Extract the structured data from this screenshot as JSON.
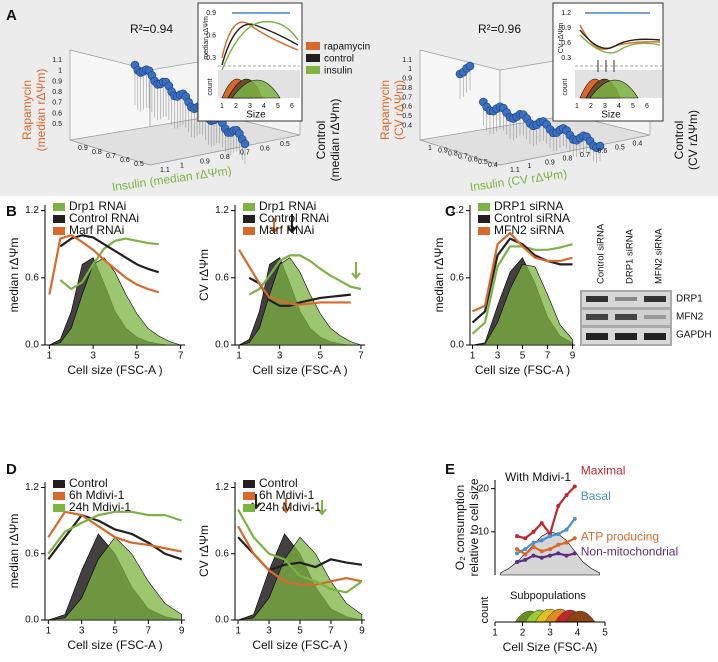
{
  "panels": [
    "A",
    "B",
    "C",
    "D",
    "E"
  ],
  "panel_a": {
    "left": {
      "r2": "R²=0.94",
      "z_label": [
        "Rapamycin",
        "(median rΔΨm)"
      ],
      "x_label": "Insulin (median rΔΨm)",
      "y_label": [
        "Control",
        "(median rΔΨm)"
      ],
      "inset_ylabel": "median rΔΨm",
      "inset_yticks": [
        "0.9",
        "0.6",
        "0.3"
      ],
      "inset_xlabel": "Size",
      "inset_xticks": [
        "1",
        "2",
        "3",
        "4",
        "5",
        "6"
      ],
      "count": "count",
      "x_ticks": [
        "0.9",
        "0.8",
        "0.7",
        "0.6",
        "0.5"
      ],
      "y_ticks": [
        "1.1",
        "1",
        "0.9",
        "0.8",
        "0.7",
        "0.6",
        "0.5"
      ],
      "z_ticks": [
        "1.1",
        "1",
        "0.9",
        "0.8",
        "0.7",
        "0.6",
        "0.5"
      ]
    },
    "right": {
      "r2": "R²=0.96",
      "z_label": [
        "Rapamycin",
        "(CV rΔΨm)"
      ],
      "x_label": "Insulin (CV rΔΨm)",
      "y_label": [
        "Control",
        "(CV rΔΨm)"
      ],
      "inset_ylabel": "CV rΔΨm",
      "inset_yticks": [
        "1.2",
        "0.9",
        "0.6",
        "0.3"
      ],
      "inset_xlabel": "Size",
      "inset_xticks": [
        "1",
        "2",
        "3",
        "4",
        "5",
        "6"
      ],
      "count": "count",
      "x_ticks": [
        "1",
        "0.9",
        "0.8",
        "0.7",
        "0.6",
        "0.5",
        "0.4"
      ],
      "y_ticks": [
        "1.1",
        "1",
        "0.9",
        "0.8",
        "0.7",
        "0.6",
        "0.5",
        "0.4"
      ],
      "z_ticks": [
        "1.1",
        "1",
        "0.9",
        "0.8",
        "0.7",
        "0.6",
        "0.5",
        "0.4"
      ]
    },
    "legend": [
      {
        "name": "rapamycin",
        "color": "#d9692b"
      },
      {
        "name": "control",
        "color": "#231f20"
      },
      {
        "name": "insulin",
        "color": "#7cb342"
      }
    ]
  },
  "blot": {
    "lanes": [
      "Control siRNA",
      "DRP1 siRNA",
      "MFN2 siRNA"
    ],
    "bands": [
      "DRP1",
      "MFN2",
      "GAPDH"
    ]
  },
  "panel_e_sub": {
    "title": "Subpopulations",
    "ylabel": "count"
  },
  "chart_data": [
    {
      "type": "line",
      "ylabel": "median rΔΨm",
      "xlabel": "Cell size (FSC-A )",
      "x": [
        1,
        1.5,
        2,
        2.5,
        3,
        3.5,
        4,
        4.5,
        5,
        5.5,
        6,
        6.5,
        7
      ],
      "xlim": [
        0.8,
        7.2
      ],
      "xticks": [
        1,
        3,
        5,
        7
      ],
      "ylim": [
        0,
        1.25
      ],
      "yticks": [
        {
          "value": 0,
          "label": "0.0"
        },
        0.6,
        1.2
      ],
      "series": [
        {
          "color": "#231f20",
          "fill": true,
          "values": [
            0,
            0.05,
            0.3,
            0.72,
            0.78,
            0.55,
            0.3,
            0.15,
            0.07,
            0.03,
            0.01,
            0,
            0
          ]
        },
        {
          "color": "#7cb342",
          "fill": true,
          "values": [
            0,
            0.02,
            0.15,
            0.45,
            0.72,
            0.78,
            0.65,
            0.45,
            0.28,
            0.15,
            0.08,
            0.03,
            0
          ]
        },
        {
          "name": "Drp1 RNAi",
          "color": "#7cb342",
          "values": [
            null,
            0.58,
            0.5,
            0.56,
            0.72,
            0.86,
            0.93,
            0.95,
            0.93,
            0.91,
            0.9,
            null,
            null
          ]
        },
        {
          "name": "Control RNAi",
          "color": "#231f20",
          "values": [
            null,
            0.88,
            0.95,
            0.98,
            0.96,
            0.9,
            0.84,
            0.78,
            0.72,
            0.68,
            0.65,
            null,
            null
          ]
        },
        {
          "name": "Marf RNAi",
          "color": "#d9692b",
          "values": [
            0.45,
            0.95,
            0.98,
            0.92,
            0.85,
            0.76,
            0.68,
            0.6,
            0.54,
            0.5,
            0.47,
            null,
            null
          ]
        }
      ]
    },
    {
      "type": "line",
      "ylabel": "CV rΔΨm",
      "xlabel": "Cell size (FSC-A )",
      "x": [
        1,
        1.5,
        2,
        2.5,
        3,
        3.5,
        4,
        4.5,
        5,
        5.5,
        6,
        6.5,
        7
      ],
      "xlim": [
        0.8,
        7.2
      ],
      "xticks": [
        1,
        3,
        5,
        7
      ],
      "ylim": [
        0,
        1.25
      ],
      "yticks": [
        {
          "value": 0,
          "label": "0.0"
        },
        0.6,
        1.2
      ],
      "series": [
        {
          "color": "#231f20",
          "fill": true,
          "values": [
            0,
            0.05,
            0.3,
            0.72,
            0.78,
            0.55,
            0.3,
            0.15,
            0.07,
            0.03,
            0.01,
            0,
            0
          ]
        },
        {
          "color": "#7cb342",
          "fill": true,
          "values": [
            0,
            0.02,
            0.15,
            0.45,
            0.72,
            0.78,
            0.65,
            0.45,
            0.28,
            0.15,
            0.08,
            0.03,
            0
          ]
        },
        {
          "name": "Drp1 RNAi",
          "color": "#7cb342",
          "values": [
            null,
            0.45,
            0.5,
            0.62,
            0.75,
            0.8,
            0.8,
            0.75,
            0.68,
            0.62,
            0.57,
            0.52,
            0.5
          ]
        },
        {
          "name": "Control RNAi",
          "color": "#231f20",
          "values": [
            null,
            0.6,
            0.55,
            0.4,
            0.35,
            0.35,
            0.38,
            0.4,
            0.42,
            0.43,
            0.44,
            0.45,
            null
          ]
        },
        {
          "name": "Marf RNAi",
          "color": "#d9692b",
          "values": [
            0.85,
            0.7,
            0.55,
            0.42,
            0.4,
            0.37,
            0.36,
            0.37,
            0.38,
            0.38,
            0.38,
            0.38,
            null
          ]
        }
      ]
    },
    {
      "type": "line",
      "ylabel": "median rΔΨm",
      "xlabel": "Cell size (FSC-A )",
      "x": [
        1,
        2,
        3,
        4,
        5,
        6,
        7,
        8,
        9
      ],
      "xlim": [
        0.8,
        9.2
      ],
      "xticks": [
        1,
        3,
        5,
        7,
        9
      ],
      "ylim": [
        0,
        1.25
      ],
      "yticks": [
        {
          "value": 0,
          "label": "0.0"
        },
        0.6,
        1.2
      ],
      "series": [
        {
          "color": "#231f20",
          "fill": true,
          "values": [
            0,
            0.02,
            0.35,
            0.65,
            0.78,
            0.55,
            0.25,
            0.08,
            0.02
          ]
        },
        {
          "color": "#7cb342",
          "fill": true,
          "values": [
            0,
            0.01,
            0.2,
            0.5,
            0.72,
            0.7,
            0.45,
            0.18,
            0.05
          ]
        },
        {
          "name": "DRP1 siRNA",
          "color": "#7cb342",
          "values": [
            0.1,
            0.2,
            0.7,
            0.88,
            0.88,
            0.85,
            0.85,
            0.87,
            0.9
          ]
        },
        {
          "name": "Control siRNA",
          "color": "#231f20",
          "values": [
            0.2,
            0.3,
            0.8,
            0.95,
            0.9,
            0.8,
            0.75,
            0.72,
            0.72
          ]
        },
        {
          "name": "MFN2 siRNA",
          "color": "#d9692b",
          "values": [
            0.3,
            0.35,
            0.9,
            1.0,
            0.88,
            0.78,
            0.75,
            0.75,
            0.78
          ]
        }
      ]
    },
    {
      "type": "line",
      "ylabel": "median rΔΨm",
      "xlabel": "Cell size (FSC-A )",
      "x": [
        1,
        2,
        3,
        4,
        5,
        6,
        7,
        8,
        9
      ],
      "xlim": [
        0.8,
        9.2
      ],
      "xticks": [
        1,
        3,
        5,
        7,
        9
      ],
      "ylim": [
        0,
        1.25
      ],
      "yticks": [
        {
          "value": 0,
          "label": "0.0"
        },
        0.6,
        1.2
      ],
      "series": [
        {
          "color": "#231f20",
          "fill": true,
          "values": [
            0,
            0.05,
            0.45,
            0.78,
            0.6,
            0.3,
            0.1,
            0.03,
            0
          ]
        },
        {
          "color": "#7cb342",
          "fill": true,
          "values": [
            0,
            0.02,
            0.2,
            0.55,
            0.75,
            0.6,
            0.35,
            0.15,
            0.05
          ]
        },
        {
          "name": "Control",
          "color": "#231f20",
          "values": [
            0.55,
            0.75,
            0.95,
            0.9,
            0.82,
            0.78,
            0.7,
            0.6,
            0.55
          ]
        },
        {
          "name": "6h Mdivi-1",
          "color": "#d9692b",
          "values": [
            0.75,
            0.98,
            0.95,
            0.85,
            0.75,
            0.7,
            0.68,
            0.65,
            0.62
          ]
        },
        {
          "name": "24h Mdivi-1",
          "color": "#7cb342",
          "values": [
            0.6,
            0.8,
            0.88,
            0.95,
            0.98,
            0.98,
            0.95,
            0.95,
            0.9
          ]
        }
      ]
    },
    {
      "type": "line",
      "ylabel": "CV rΔΨm",
      "xlabel": "Cell size (FSC-A )",
      "x": [
        1,
        2,
        3,
        4,
        5,
        6,
        7,
        8,
        9
      ],
      "xlim": [
        0.8,
        9.2
      ],
      "xticks": [
        1,
        3,
        5,
        7,
        9
      ],
      "ylim": [
        0,
        1.25
      ],
      "yticks": [
        {
          "value": 0,
          "label": "0.0"
        },
        0.6,
        1.2
      ],
      "series": [
        {
          "color": "#231f20",
          "fill": true,
          "values": [
            0,
            0.05,
            0.45,
            0.78,
            0.6,
            0.3,
            0.1,
            0.03,
            0
          ]
        },
        {
          "color": "#7cb342",
          "fill": true,
          "values": [
            0,
            0.02,
            0.2,
            0.55,
            0.75,
            0.6,
            0.35,
            0.15,
            0.05
          ]
        },
        {
          "name": "Control",
          "color": "#231f20",
          "values": [
            0.75,
            0.6,
            0.45,
            0.5,
            0.52,
            0.48,
            0.55,
            0.52,
            0.5
          ]
        },
        {
          "name": "6h Mdivi-1",
          "color": "#d9692b",
          "values": [
            0.85,
            0.6,
            0.45,
            0.35,
            0.32,
            0.32,
            0.35,
            0.38,
            0.35
          ]
        },
        {
          "name": "24h Mdivi-1",
          "color": "#7cb342",
          "values": [
            1.0,
            0.75,
            0.6,
            0.55,
            0.4,
            0.35,
            0.28,
            0.25,
            0.35
          ]
        }
      ]
    },
    {
      "type": "line",
      "title": "With Mdivi-1",
      "ylabel": [
        "O₂ consumption",
        "relative to cell size"
      ],
      "xlabel": "Cell Size (FSC-A)",
      "x": [
        1.2,
        1.5,
        1.8,
        2.1,
        2.4,
        2.7,
        3.0,
        3.3,
        3.6,
        3.9,
        4.2,
        4.5,
        4.8
      ],
      "xlim": [
        1,
        5
      ],
      "xticks": [
        1,
        2,
        3,
        4,
        5
      ],
      "ylim": [
        0,
        22
      ],
      "yticks": [
        10,
        20
      ],
      "series": [
        {
          "color": "#c8c8c8",
          "fill": true,
          "values": [
            0.5,
            1.5,
            3,
            5,
            7,
            9,
            10,
            9.5,
            8,
            5.5,
            3,
            1.5,
            0.5
          ]
        },
        {
          "name": "Maximal",
          "color": "#c0272d",
          "values": [
            null,
            null,
            9,
            8.5,
            10,
            12,
            9.5,
            16,
            18.5,
            20.5,
            null,
            null,
            null
          ]
        },
        {
          "name": "Basal",
          "color": "#4a90d0",
          "values": [
            null,
            null,
            5,
            6,
            7.5,
            8,
            9,
            9.5,
            10.5,
            13,
            null,
            null,
            null
          ]
        },
        {
          "name": "ATP producing",
          "color": "#d9692b",
          "values": [
            null,
            null,
            6,
            4.8,
            6.5,
            5.5,
            6,
            7,
            7.5,
            8.5,
            null,
            null,
            null
          ]
        },
        {
          "name": "Non-mitochondrial",
          "color": "#5b2c83",
          "values": [
            null,
            null,
            3,
            3.5,
            4.5,
            4,
            4.5,
            5,
            4.5,
            5,
            null,
            null,
            null
          ]
        }
      ]
    }
  ]
}
